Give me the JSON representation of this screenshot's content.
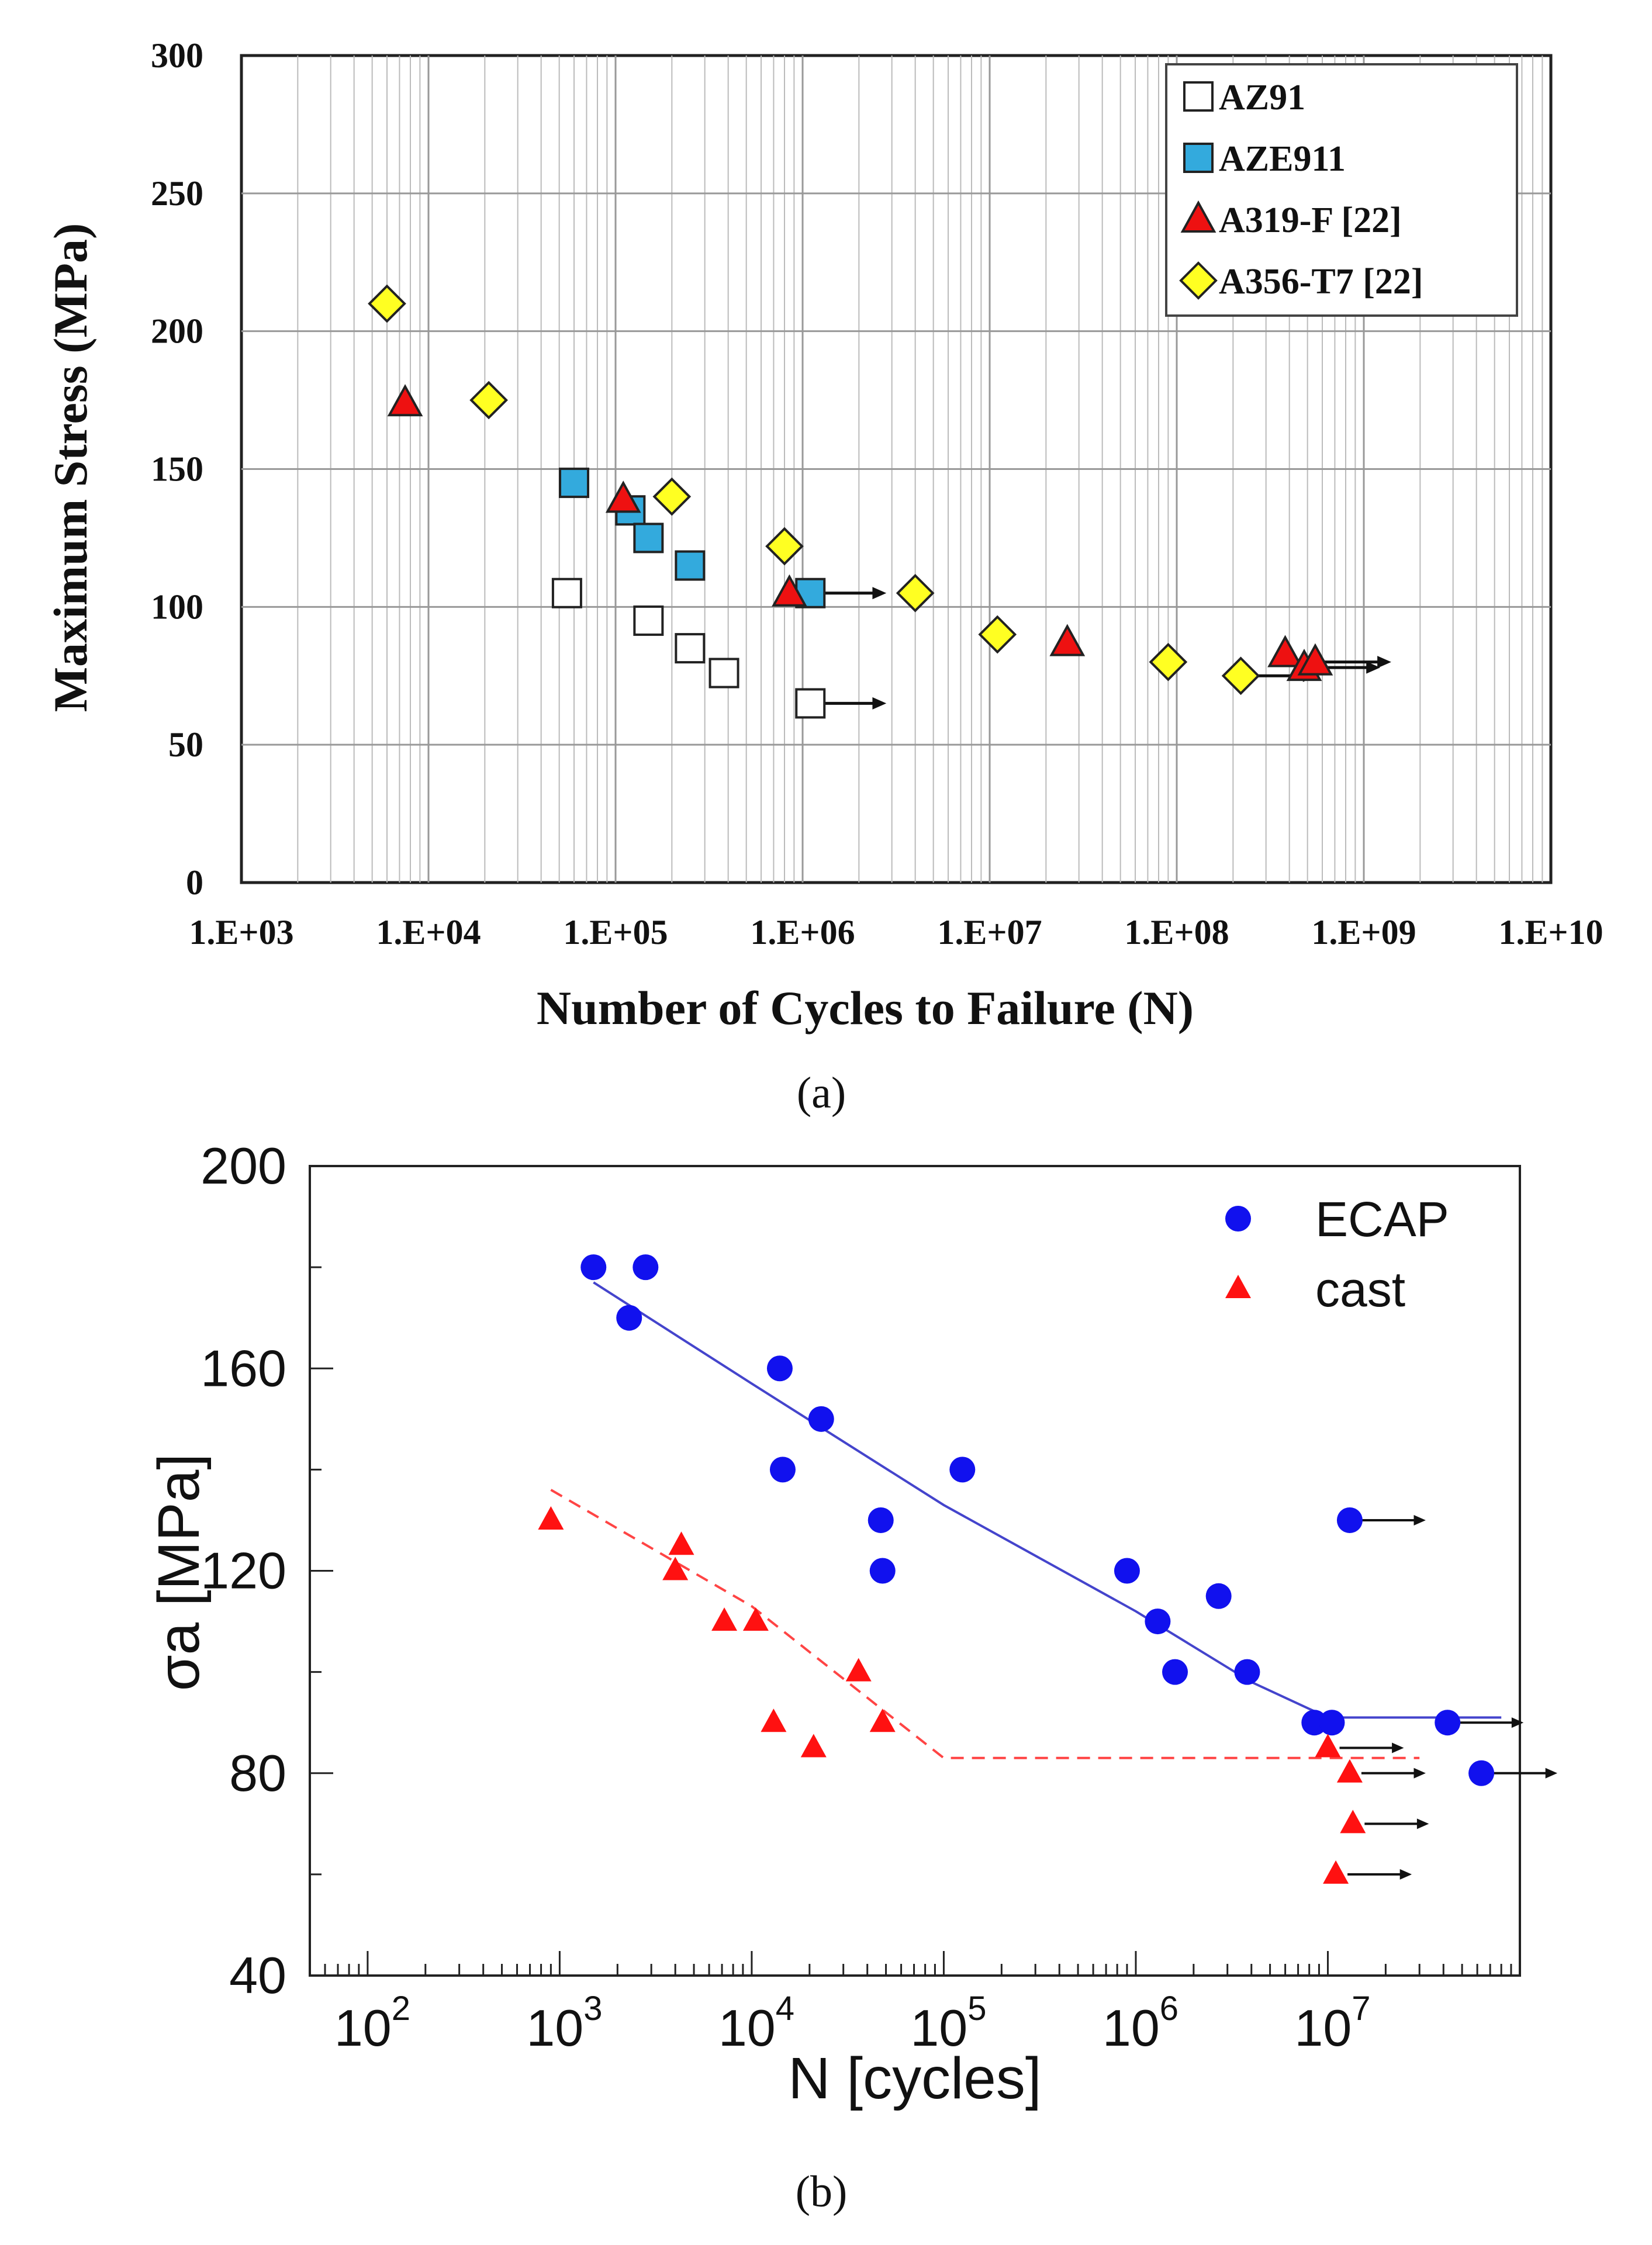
{
  "colors": {
    "azc91_fill": "#ffffff",
    "aze911_fill": "#33aadd",
    "a319_fill": "#ee1111",
    "a356_fill": "#ffff22",
    "ecap": "#1111ee",
    "cast": "#ff1111",
    "ecap_line": "#4444cc",
    "cast_line": "#ff4444"
  },
  "chart_data": [
    {
      "type": "scatter",
      "panel_label": "(a)",
      "title": "",
      "xlabel": "Number of Cycles to Failure (N)",
      "ylabel": "Maximum Stress (MPa)",
      "xscale": "log",
      "xlim": [
        1000,
        10000000000
      ],
      "ylim": [
        0,
        300
      ],
      "x_tick_labels": [
        "1.E+03",
        "1.E+04",
        "1.E+05",
        "1.E+06",
        "1.E+07",
        "1.E+08",
        "1.E+09",
        "1.E+10"
      ],
      "x_tick_values": [
        1000,
        10000,
        100000,
        1000000,
        10000000,
        100000000,
        1000000000,
        10000000000
      ],
      "y_tick_labels": [
        "0",
        "50",
        "100",
        "150",
        "200",
        "250",
        "300"
      ],
      "y_tick_values": [
        0,
        50,
        100,
        150,
        200,
        250,
        300
      ],
      "grid": true,
      "legend_position": "top-right",
      "series": [
        {
          "name": "AZ91",
          "marker": "square",
          "fill": "#ffffff",
          "points": [
            [
              55000,
              105
            ],
            [
              150000,
              95
            ],
            [
              250000,
              85
            ],
            [
              380000,
              76
            ],
            [
              1100000,
              65
            ]
          ],
          "runouts": [
            [
              1100000,
              65
            ]
          ]
        },
        {
          "name": "AZE911",
          "marker": "square",
          "fill": "#33aadd",
          "points": [
            [
              60000,
              145
            ],
            [
              120000,
              135
            ],
            [
              150000,
              125
            ],
            [
              250000,
              115
            ],
            [
              1100000,
              105
            ]
          ],
          "runouts": [
            [
              1100000,
              105
            ]
          ]
        },
        {
          "name": "A319-F [22]",
          "marker": "triangle",
          "fill": "#ee1111",
          "points": [
            [
              7500,
              174
            ],
            [
              110000,
              139
            ],
            [
              850000,
              105
            ],
            [
              26000000,
              87
            ],
            [
              380000000,
              83
            ],
            [
              480000000,
              78
            ],
            [
              550000000,
              80
            ]
          ],
          "runouts": [
            [
              480000000,
              78
            ],
            [
              550000000,
              80
            ]
          ]
        },
        {
          "name": "A356-T7 [22]",
          "marker": "diamond",
          "fill": "#ffff22",
          "points": [
            [
              6000,
              210
            ],
            [
              21000,
              175
            ],
            [
              200000,
              140
            ],
            [
              800000,
              122
            ],
            [
              4000000,
              105
            ],
            [
              11000000,
              90
            ],
            [
              90000000,
              80
            ],
            [
              220000000,
              75
            ]
          ],
          "runouts": [
            [
              220000000,
              75
            ]
          ]
        }
      ]
    },
    {
      "type": "scatter",
      "panel_label": "(b)",
      "title": "",
      "xlabel": "N [cycles]",
      "ylabel": "σa [MPa]",
      "xscale": "log",
      "xlim": [
        50,
        100000000
      ],
      "ylim": [
        40,
        200
      ],
      "x_tick_values": [
        100,
        1000,
        10000,
        100000,
        1000000,
        10000000
      ],
      "x_tick_exponents": [
        "2",
        "3",
        "4",
        "5",
        "6",
        "7"
      ],
      "x_tick_base": "10",
      "y_tick_labels": [
        "40",
        "80",
        "120",
        "160",
        "200"
      ],
      "y_tick_values": [
        40,
        80,
        120,
        160,
        200
      ],
      "grid": false,
      "legend_position": "top-right",
      "series": [
        {
          "name": "ECAP",
          "marker": "circle",
          "color": "#1111ee",
          "points": [
            [
              1500,
              180
            ],
            [
              2300,
              170
            ],
            [
              2800,
              180
            ],
            [
              14000,
              160
            ],
            [
              14500,
              140
            ],
            [
              23000,
              150
            ],
            [
              47000,
              130
            ],
            [
              48000,
              120
            ],
            [
              125000,
              140
            ],
            [
              900000,
              120
            ],
            [
              1300000,
              110
            ],
            [
              1600000,
              100
            ],
            [
              2700000,
              115
            ],
            [
              3800000,
              100
            ],
            [
              8500000,
              90
            ],
            [
              10500000,
              90
            ],
            [
              13000000,
              130
            ],
            [
              42000000,
              90
            ],
            [
              63000000,
              80
            ]
          ],
          "runouts": [
            [
              13000000,
              130
            ],
            [
              42000000,
              90
            ],
            [
              63000000,
              80
            ]
          ],
          "fit_line": [
            [
              1500,
              177
            ],
            [
              10000,
              157
            ],
            [
              100000,
              133
            ],
            [
              1000000,
              112
            ],
            [
              4000000,
              98
            ],
            [
              10000000,
              91
            ],
            [
              80000000,
              91
            ]
          ],
          "fit_style": "solid"
        },
        {
          "name": "cast",
          "marker": "triangle",
          "color": "#ff1111",
          "points": [
            [
              900,
              130
            ],
            [
              4000,
              120
            ],
            [
              4300,
              125
            ],
            [
              7200,
              110
            ],
            [
              10500,
              110
            ],
            [
              13000,
              90
            ],
            [
              21000,
              85
            ],
            [
              36000,
              100
            ],
            [
              48000,
              90
            ],
            [
              10000000,
              85
            ],
            [
              13000000,
              80
            ],
            [
              13500000,
              70
            ],
            [
              11000000,
              60
            ]
          ],
          "runouts": [
            [
              10000000,
              85
            ],
            [
              13000000,
              80
            ],
            [
              13500000,
              70
            ],
            [
              11000000,
              60
            ]
          ],
          "fit_line": [
            [
              900,
              136
            ],
            [
              10000,
              113
            ],
            [
              50000,
              92
            ],
            [
              100000,
              83
            ],
            [
              30000000,
              83
            ]
          ],
          "fit_style": "dashed"
        }
      ]
    }
  ]
}
